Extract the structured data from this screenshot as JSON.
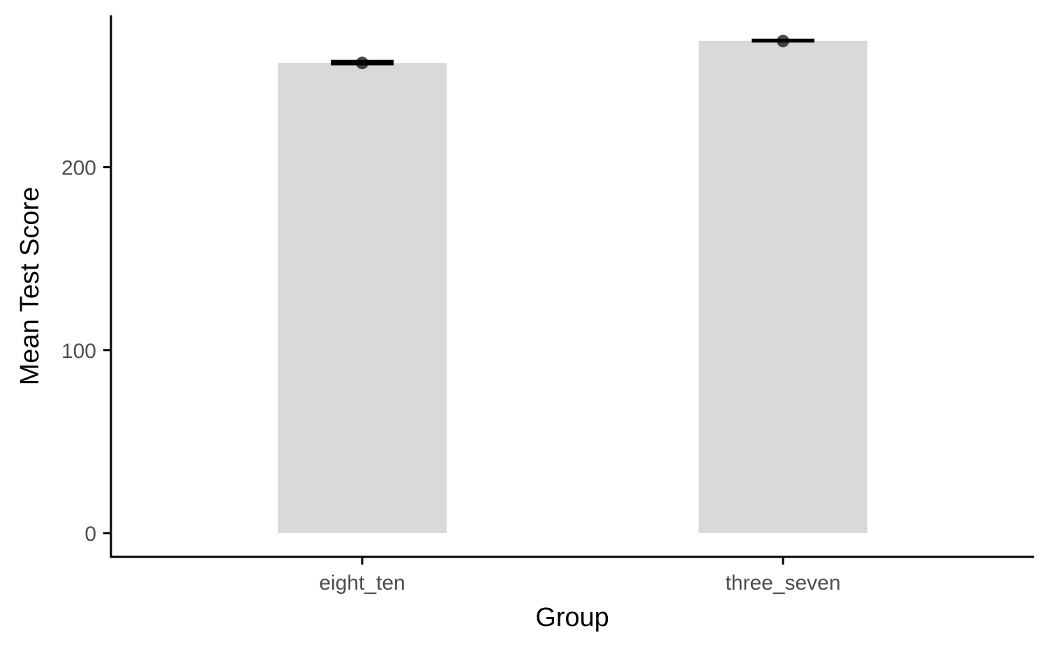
{
  "chart_data": {
    "type": "bar",
    "categories": [
      "eight_ten",
      "three_seven"
    ],
    "values": [
      257,
      269
    ],
    "error_bars": [
      {
        "mean": 257,
        "lower": 255.5,
        "upper": 258.5
      },
      {
        "mean": 269,
        "lower": 268.0,
        "upper": 270.0
      }
    ],
    "xlabel": "Group",
    "ylabel": "Mean Test Score",
    "ylim": [
      -13,
      283
    ],
    "yticks": [
      0,
      100,
      200
    ],
    "ytick_labels": [
      "0",
      "100",
      "200"
    ],
    "grid": false,
    "legend": "none",
    "colors": {
      "bar": "#d9d9d9",
      "point": "#000000",
      "axis": "#000000"
    }
  }
}
